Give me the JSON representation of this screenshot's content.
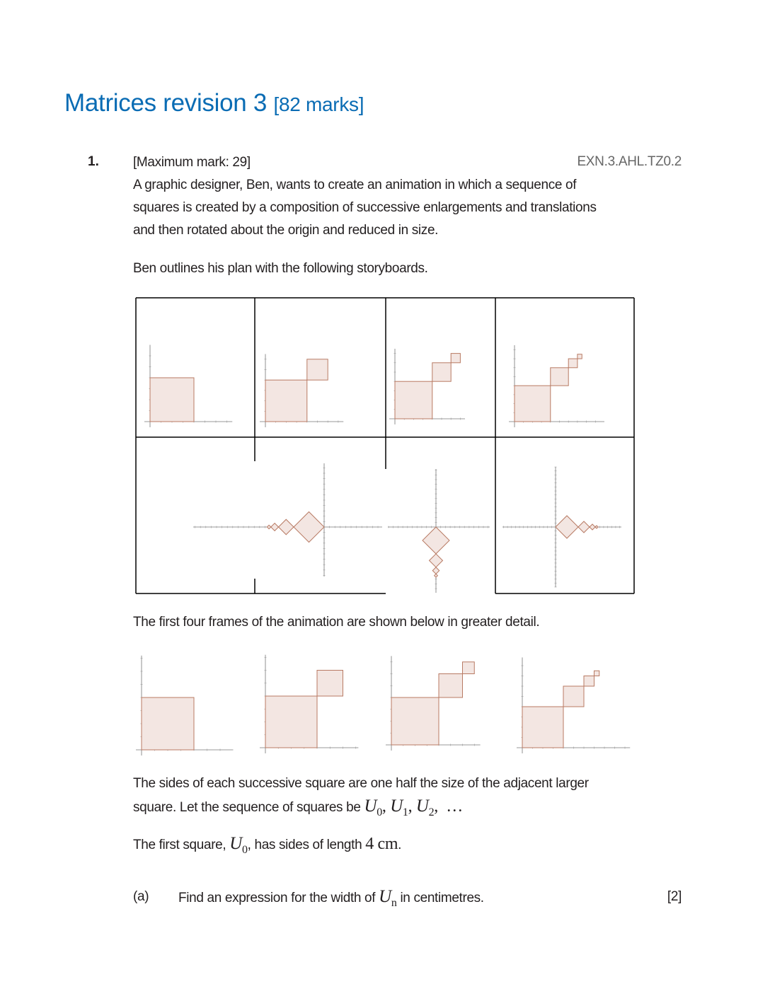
{
  "title": {
    "main": "Matrices revision 3",
    "marks": "[82 marks]"
  },
  "question": {
    "number": "1.",
    "max_mark": "[Maximum mark: 29]",
    "reference": "EXN.3.AHL.TZ0.2",
    "intro_lines": [
      "A graphic designer, Ben, wants to create an animation in which a sequence of",
      "squares is created by a composition of successive enlargements and translations",
      "and then rotated about the origin and reduced in size."
    ],
    "storyboard_text": "Ben outlines his plan with the following storyboards.",
    "frames_text": "The first four frames of the animation are shown below in greater detail.",
    "sides_line1": "The sides of each successive square are one half the size of the adjacent larger",
    "sides_line2_prefix": "square. Let the sequence of squares be",
    "sequence": {
      "u0": "U",
      "s0": "0",
      "u1": "U",
      "s1": "1",
      "u2": "U",
      "s2": "2",
      "dots": "…"
    },
    "first_prefix": "The first square,",
    "first_sym": "U",
    "first_sub": "0",
    "first_mid": ", has sides of length",
    "first_len": "4 cm",
    "first_end": ".",
    "part_a": {
      "label": "(a)",
      "text_prefix": "Find an expression for the width of",
      "sym": "U",
      "sub": "n",
      "text_suffix": "in centimetres.",
      "marks": "[2]"
    }
  },
  "colors": {
    "title": "#0a6cb4",
    "square_fill": "#f3e6e2",
    "square_stroke": "#b87a63"
  }
}
